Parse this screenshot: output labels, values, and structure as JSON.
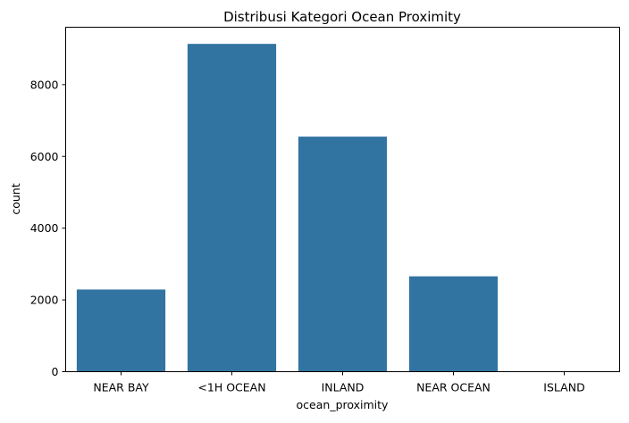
{
  "chart_data": {
    "type": "bar",
    "title": "Distribusi Kategori Ocean Proximity",
    "xlabel": "ocean_proximity",
    "ylabel": "count",
    "categories": [
      "NEAR BAY",
      "<1H OCEAN",
      "INLAND",
      "NEAR OCEAN",
      "ISLAND"
    ],
    "values": [
      2290,
      9136,
      6551,
      2658,
      5
    ],
    "ylim": [
      0,
      9600
    ],
    "yticks": [
      0,
      2000,
      4000,
      6000,
      8000
    ],
    "grid": false,
    "legend": "none",
    "bar_color": "#3274a1"
  }
}
